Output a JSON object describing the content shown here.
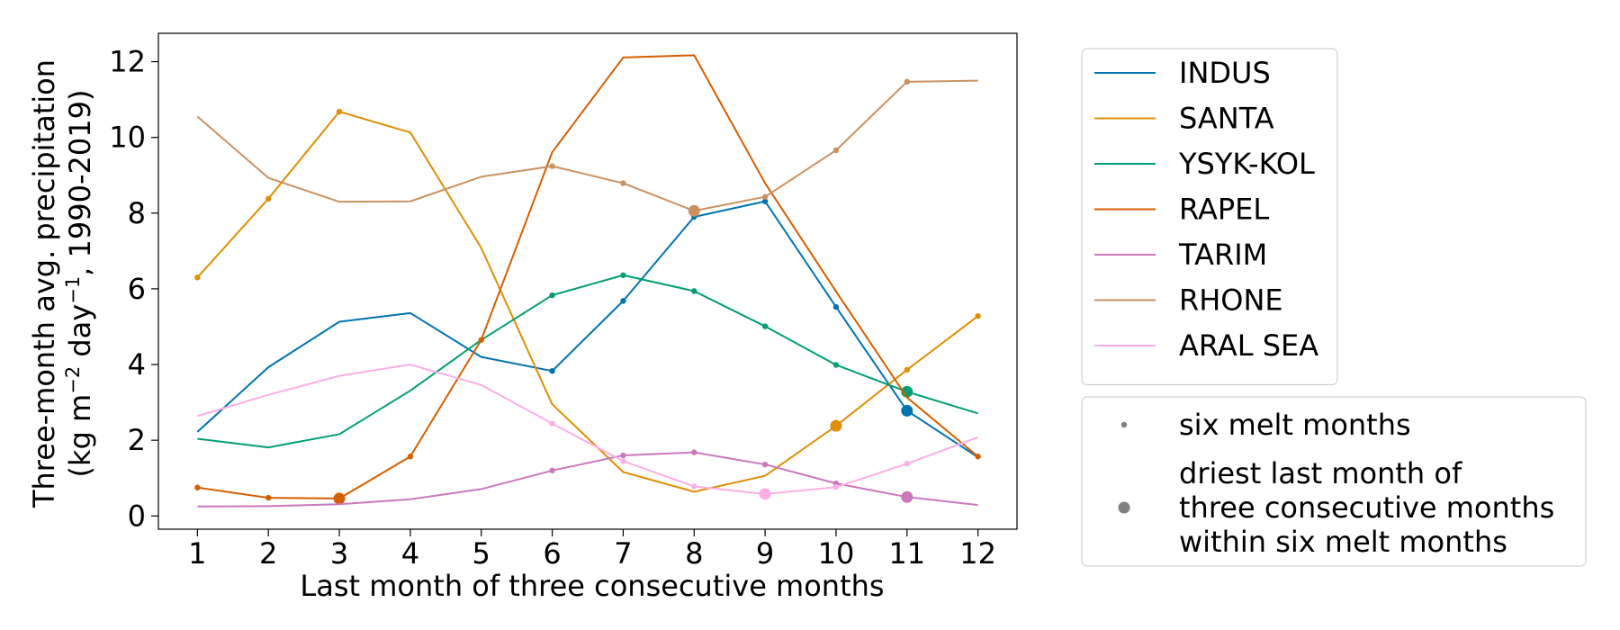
{
  "chart_data": {
    "type": "line",
    "x": [
      1,
      2,
      3,
      4,
      5,
      6,
      7,
      8,
      9,
      10,
      11,
      12
    ],
    "xlabel": "Last month of three consecutive months",
    "ylabel_line1": "Three-month avg. precipitation",
    "ylabel_line2_prefix": "(kg m",
    "ylabel_line2_sup1": "−2",
    "ylabel_line2_mid": " day",
    "ylabel_line2_sup2": "−1",
    "ylabel_line2_suffix": ", 1990-2019)",
    "xlim": [
      0.45,
      12.55
    ],
    "ylim": [
      -0.35,
      12.75
    ],
    "xticks": [
      1,
      2,
      3,
      4,
      5,
      6,
      7,
      8,
      9,
      10,
      11,
      12
    ],
    "yticks": [
      0,
      2,
      4,
      6,
      8,
      10,
      12
    ],
    "grid": false,
    "legend_placement": "outside-right",
    "series": [
      {
        "name": "INDUS",
        "color": "#0173b2",
        "values": [
          2.22,
          3.93,
          5.13,
          5.36,
          4.2,
          3.83,
          5.68,
          7.9,
          8.31,
          5.52,
          2.78,
          1.55
        ],
        "melt_months": [
          6,
          7,
          8,
          9,
          10,
          11
        ],
        "driest_month": 11
      },
      {
        "name": "SANTA",
        "color": "#de8f05",
        "values": [
          6.3,
          8.38,
          10.68,
          10.13,
          7.08,
          2.95,
          1.16,
          0.64,
          1.06,
          2.38,
          3.86,
          5.28
        ],
        "melt_months": [
          1,
          2,
          3,
          10,
          11,
          12
        ],
        "driest_month": 10
      },
      {
        "name": "YSYK-KOL",
        "color": "#029e73",
        "values": [
          2.04,
          1.81,
          2.16,
          3.31,
          4.65,
          5.83,
          6.36,
          5.94,
          5.01,
          3.99,
          3.28,
          2.71
        ],
        "melt_months": [
          6,
          7,
          8,
          9,
          10,
          11
        ],
        "driest_month": 11
      },
      {
        "name": "RAPEL",
        "color": "#d55e00",
        "values": [
          0.75,
          0.48,
          0.46,
          1.57,
          4.65,
          9.61,
          12.11,
          12.17,
          8.79,
          5.93,
          3.13,
          1.57
        ],
        "melt_months": [
          1,
          2,
          3,
          4,
          5,
          12
        ],
        "driest_month": 3
      },
      {
        "name": "TARIM",
        "color": "#cc78bc",
        "values": [
          0.25,
          0.26,
          0.31,
          0.44,
          0.71,
          1.2,
          1.6,
          1.68,
          1.36,
          0.86,
          0.5,
          0.29
        ],
        "melt_months": [
          6,
          7,
          8,
          9,
          10,
          11
        ],
        "driest_month": 11
      },
      {
        "name": "RHONE",
        "color": "#ca9161",
        "values": [
          10.55,
          8.93,
          8.3,
          8.31,
          8.96,
          9.24,
          8.79,
          8.06,
          8.43,
          9.66,
          11.47,
          11.5
        ],
        "melt_months": [
          6,
          7,
          8,
          9,
          10,
          11
        ],
        "driest_month": 8
      },
      {
        "name": "ARAL SEA",
        "color": "#fbafe4",
        "values": [
          2.64,
          3.2,
          3.7,
          4.0,
          3.46,
          2.44,
          1.45,
          0.78,
          0.58,
          0.76,
          1.38,
          2.08
        ],
        "melt_months": [
          6,
          7,
          8,
          9,
          10,
          11
        ],
        "driest_month": 9
      }
    ],
    "marker_legend": [
      {
        "label_lines": [
          "six melt months"
        ],
        "marker": "small",
        "color": "#808080"
      },
      {
        "label_lines": [
          "driest last month of",
          "three consecutive months",
          "within six melt months"
        ],
        "marker": "large",
        "color": "#808080"
      }
    ]
  }
}
